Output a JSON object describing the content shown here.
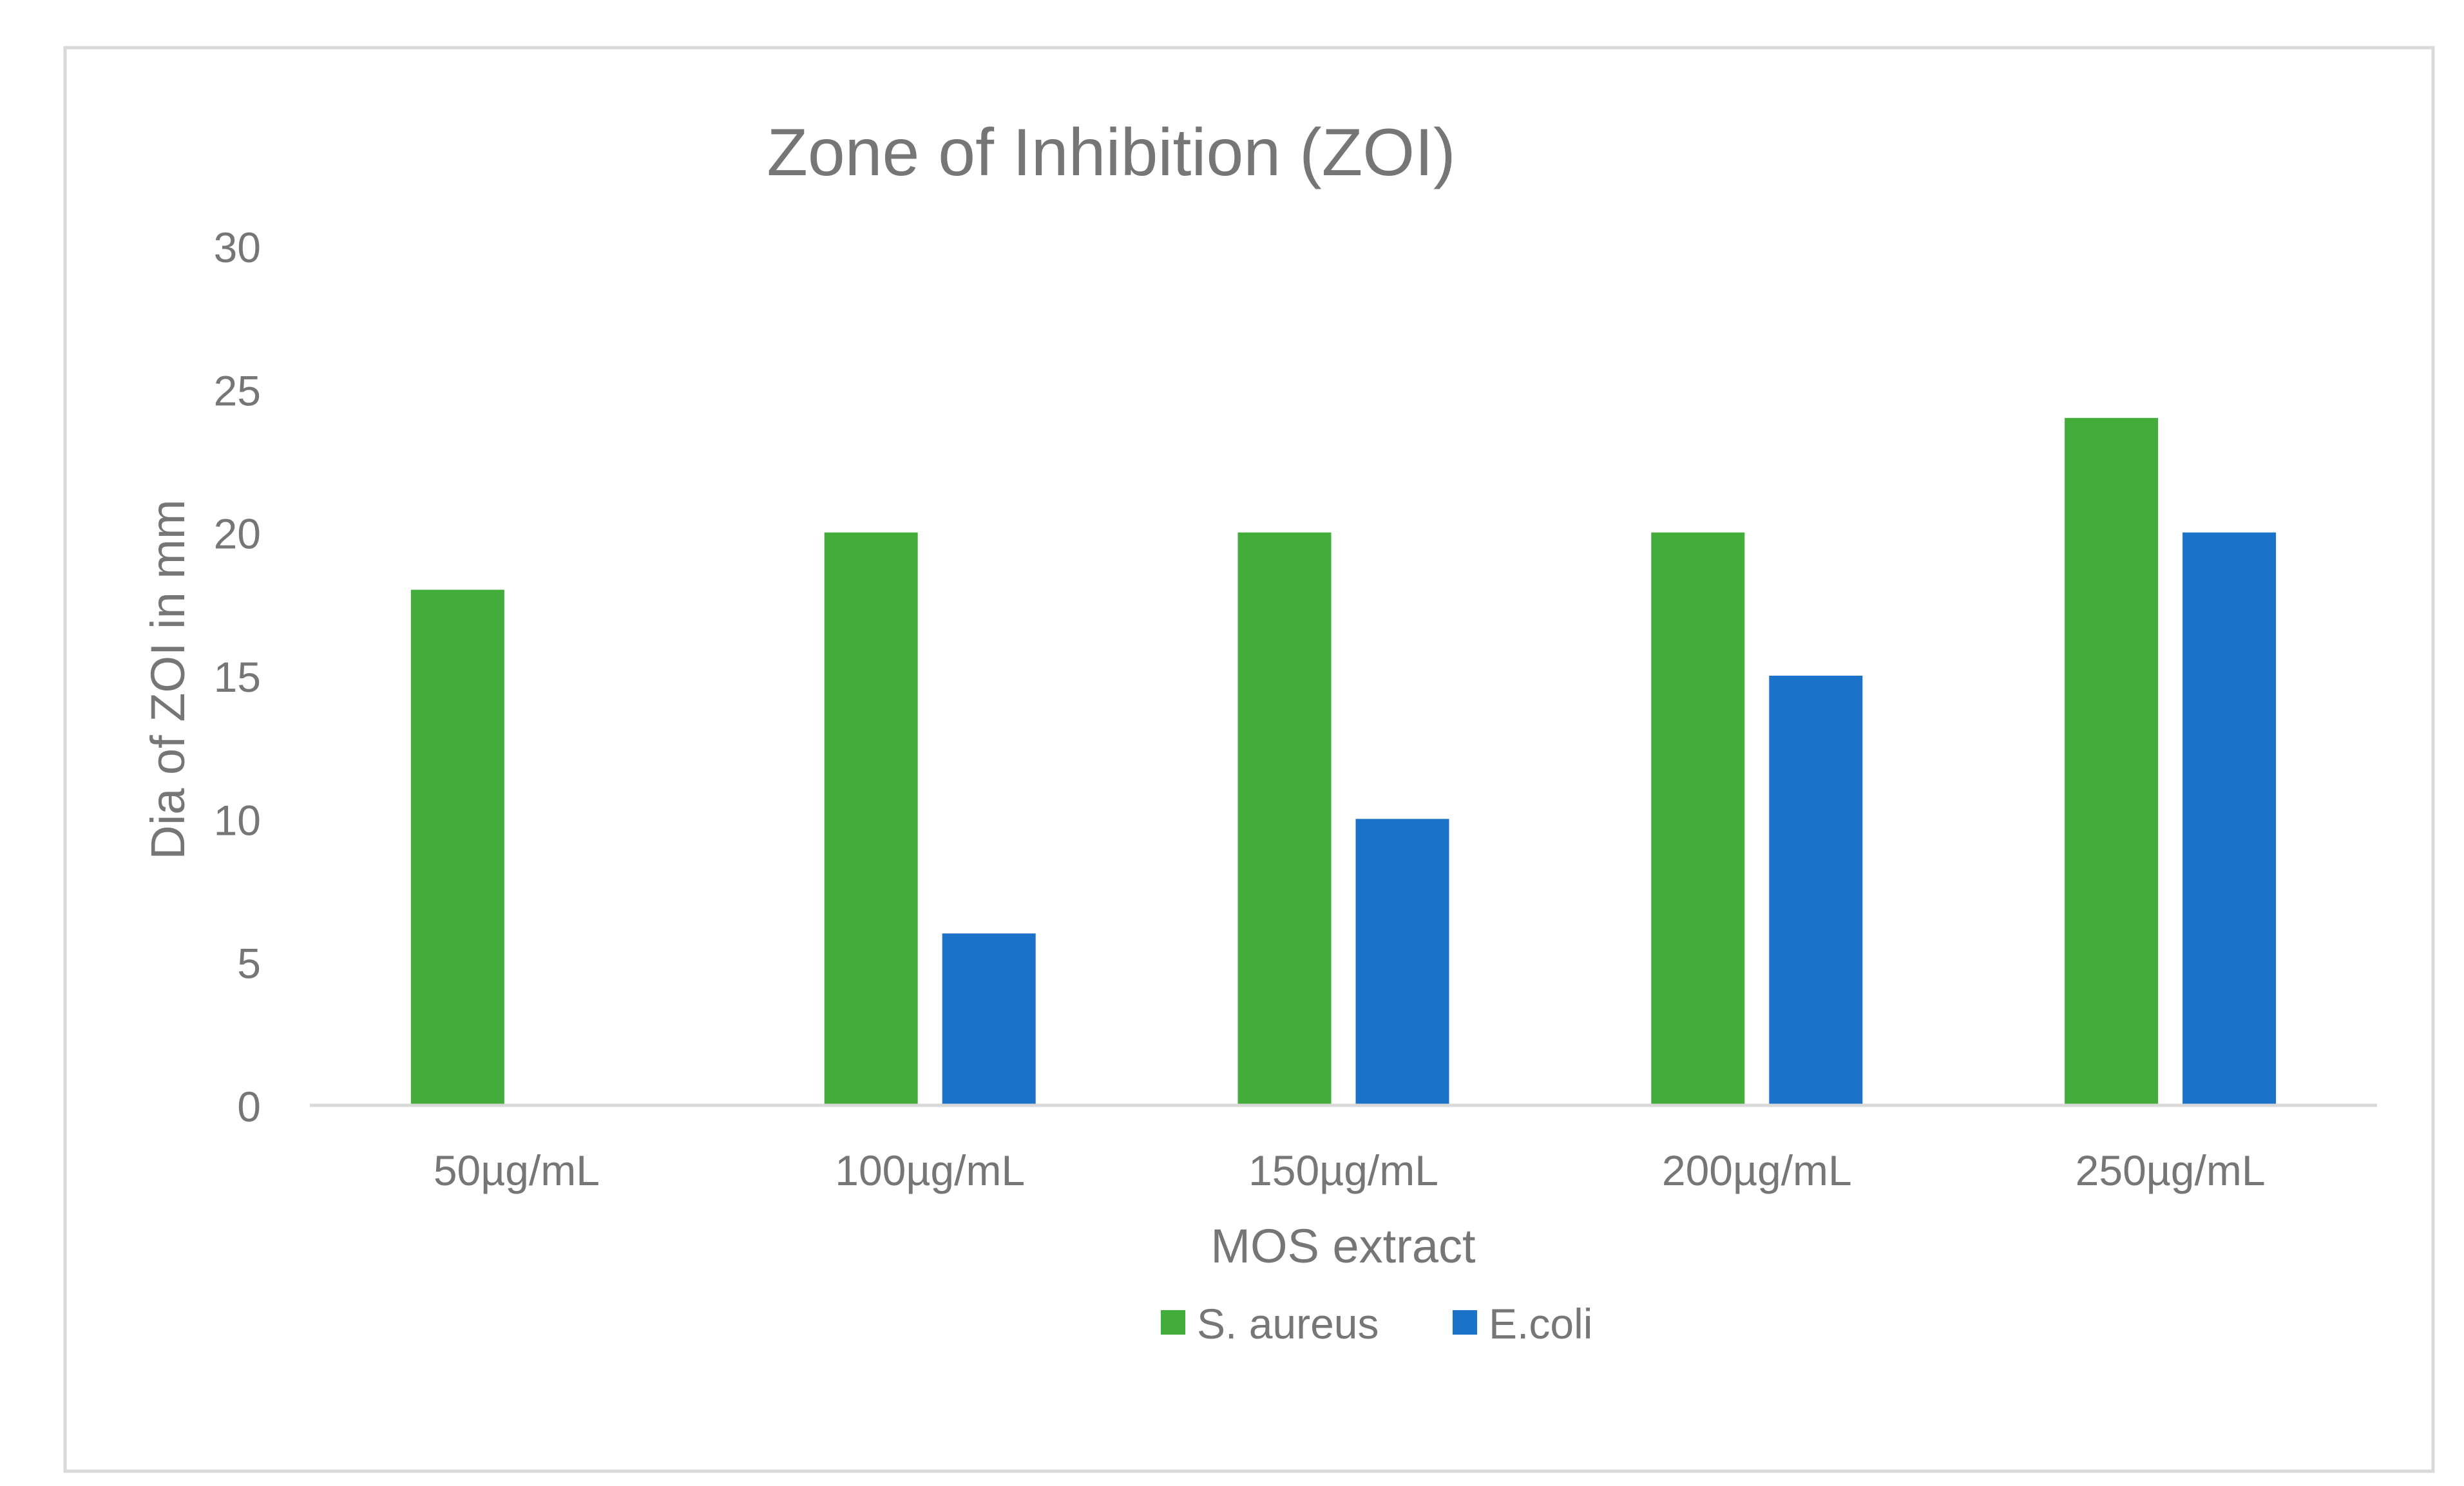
{
  "chart_data": {
    "type": "bar",
    "title": "Zone of Inhibition (ZOI)",
    "xlabel": "MOS extract",
    "ylabel": "Dia of ZOI in mm",
    "categories": [
      "50µg/mL",
      "100µg/mL",
      "150µg/mL",
      "200µg/mL",
      "250µg/mL"
    ],
    "series": [
      {
        "name": "S. aureus",
        "color": "#43ad3b",
        "values": [
          18,
          20,
          20,
          20,
          24
        ]
      },
      {
        "name": "E.coli",
        "color": "#1a73c8",
        "values": [
          0,
          6,
          10,
          15,
          20
        ]
      }
    ],
    "ylim": [
      0,
      30
    ],
    "yticks": [
      0,
      5,
      10,
      15,
      20,
      25,
      30
    ],
    "ytick_labels": [
      "0",
      "5",
      "10",
      "15",
      "20",
      "25",
      "30"
    ],
    "grid": false,
    "legend_position": "bottom"
  }
}
